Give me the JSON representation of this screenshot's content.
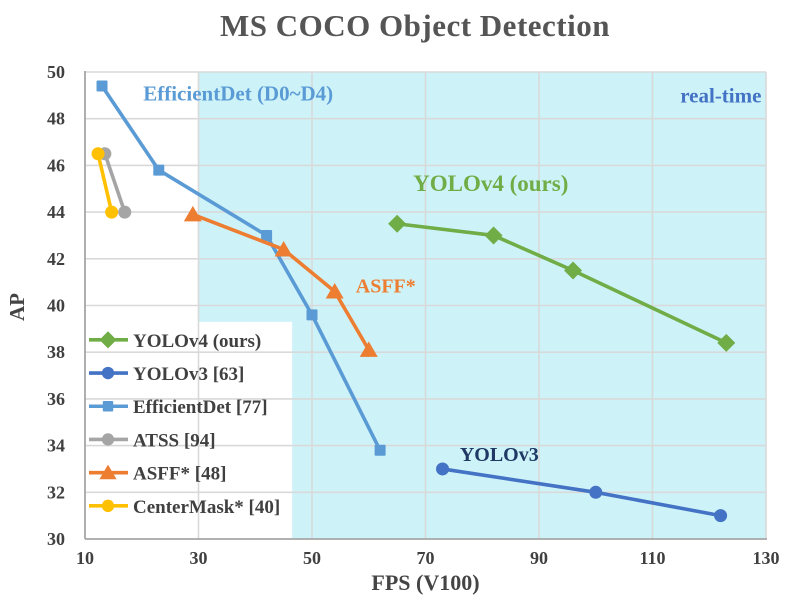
{
  "title": "MS COCO Object Detection",
  "colors": {
    "title_text": "#555555",
    "axis_text": "#444444",
    "tick_text": "#404040",
    "gridline": "#D9D9D9",
    "axis_line": "#A6A6A6",
    "background": "#FFFFFF",
    "realtime_region_fill": "#CDF3F9",
    "legend_backdrop": "#FFFFFF",
    "legend_text": "#404040"
  },
  "chart_data": {
    "type": "line",
    "title": "MS COCO Object Detection",
    "xlabel": "FPS (V100)",
    "ylabel": "AP",
    "xlim": [
      10,
      130
    ],
    "ylim": [
      30,
      50
    ],
    "x_ticks": [
      10,
      30,
      50,
      70,
      90,
      110,
      130
    ],
    "y_ticks": [
      30,
      32,
      34,
      36,
      38,
      40,
      42,
      44,
      46,
      48,
      50
    ],
    "grid": true,
    "legend_position": "inside-bottom-left",
    "realtime_region": {
      "x_start": 30,
      "x_end": 130,
      "label": "real-time",
      "fill": "#CDF3F9"
    },
    "legend_box_hint": {
      "x1": 10,
      "x2": 46.5,
      "y1": 30,
      "y2": 39.3
    },
    "series": [
      {
        "name": "YOLOv4 (ours)",
        "color": "#70AD47",
        "marker": "diamond",
        "points": [
          [
            65,
            43.5
          ],
          [
            82,
            43.0
          ],
          [
            96,
            41.5
          ],
          [
            123,
            38.4
          ]
        ]
      },
      {
        "name": "YOLOv3 [63]",
        "color": "#4472C4",
        "marker": "circle",
        "points": [
          [
            73,
            33.0
          ],
          [
            100,
            32.0
          ],
          [
            122,
            31.0
          ]
        ]
      },
      {
        "name": "EfficientDet [77]",
        "color": "#5B9BD5",
        "marker": "square",
        "points": [
          [
            13,
            49.4
          ],
          [
            23,
            45.8
          ],
          [
            42,
            43.0
          ],
          [
            50,
            39.6
          ],
          [
            62,
            33.8
          ]
        ]
      },
      {
        "name": "ATSS [94]",
        "color": "#A5A5A5",
        "marker": "circle",
        "points": [
          [
            13.5,
            46.5
          ],
          [
            17,
            44.0
          ]
        ]
      },
      {
        "name": "ASFF* [48]",
        "color": "#ED7D31",
        "marker": "triangle",
        "points": [
          [
            29,
            43.9
          ],
          [
            45,
            42.4
          ],
          [
            54,
            40.6
          ],
          [
            60,
            38.1
          ]
        ]
      },
      {
        "name": "CenterMask* [40]",
        "color": "#FFC000",
        "marker": "circle",
        "points": [
          [
            12.3,
            46.5
          ],
          [
            14.7,
            44.0
          ]
        ]
      }
    ],
    "draw_order": [
      2,
      3,
      5,
      4,
      1,
      0
    ],
    "annotations": [
      {
        "text": "EfficientDet (D0~D4)",
        "color": "#5B9BD5",
        "x": 37,
        "y": 49.1,
        "anchor": "middle",
        "size": 21
      },
      {
        "text": "real-time",
        "color": "#4472C4",
        "x": 129.2,
        "y": 49.0,
        "anchor": "end",
        "size": 21
      },
      {
        "text": "YOLOv4 (ours)",
        "color": "#70AD47",
        "x": 81.5,
        "y": 45.25,
        "anchor": "middle",
        "size": 23
      },
      {
        "text": "ASFF*",
        "color": "#ED7D31",
        "x": 63,
        "y": 40.85,
        "anchor": "middle",
        "size": 20
      },
      {
        "text": "YOLOv3",
        "color": "#1F3864",
        "x": 83,
        "y": 33.65,
        "anchor": "middle",
        "size": 20
      }
    ]
  }
}
